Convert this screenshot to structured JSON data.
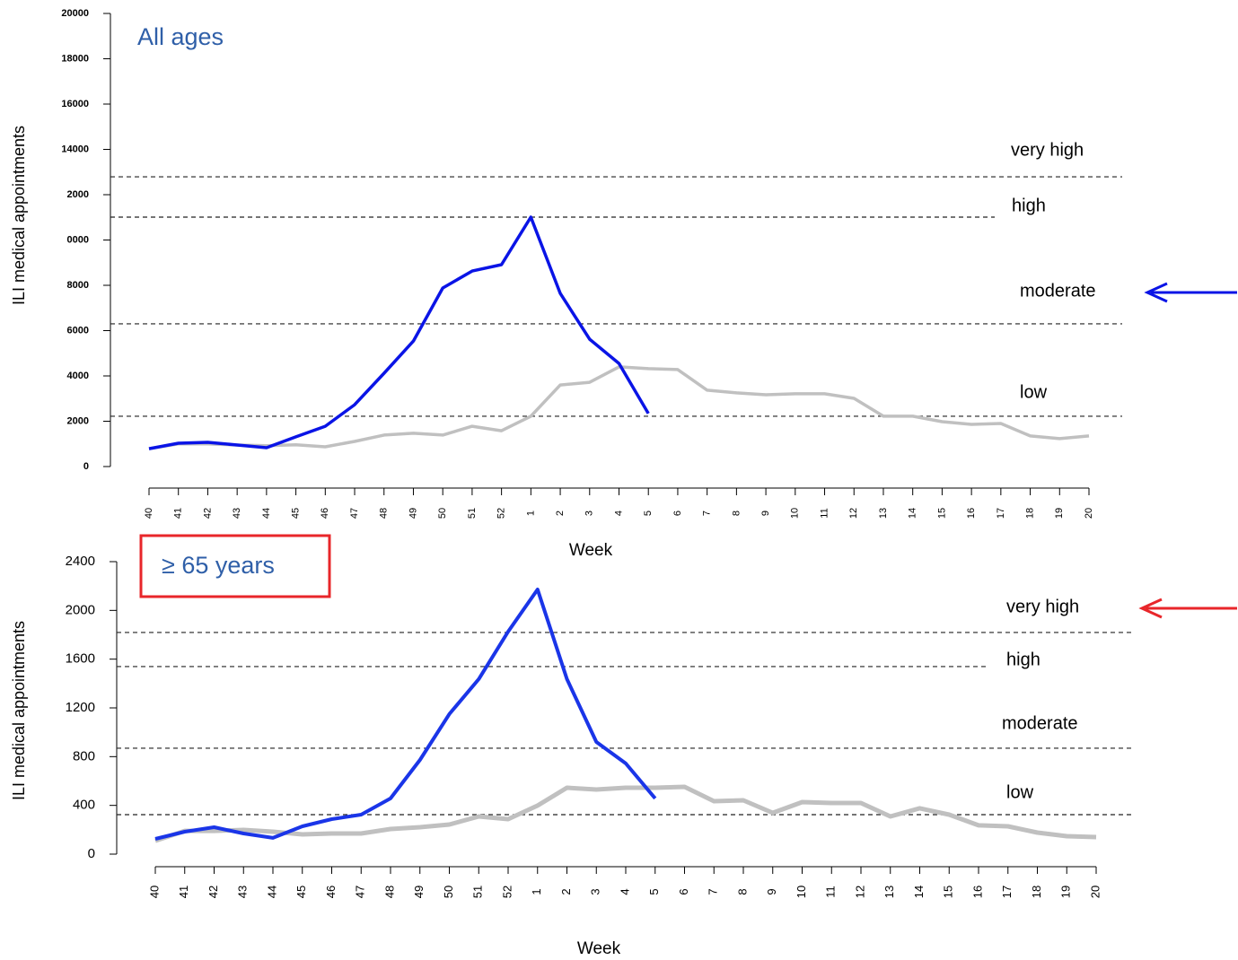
{
  "chart_data": [
    {
      "type": "line",
      "title": "All ages",
      "title_color": "#2f5fa8",
      "xlabel": "Week",
      "ylabel": "ILI medical appointments",
      "categories": [
        "40",
        "41",
        "42",
        "43",
        "44",
        "45",
        "46",
        "47",
        "48",
        "49",
        "50",
        "51",
        "52",
        "1",
        "2",
        "3",
        "4",
        "5",
        "6",
        "7",
        "8",
        "9",
        "10",
        "11",
        "12",
        "13",
        "14",
        "15",
        "16",
        "17",
        "18",
        "19",
        "20"
      ],
      "series": [
        {
          "color": "#c0c0c0",
          "values": [
            790,
            1000,
            1000,
            950,
            920,
            960,
            870,
            1110,
            1390,
            1470,
            1390,
            1780,
            1580,
            2220,
            3600,
            3720,
            4400,
            4320,
            4280,
            3370,
            3250,
            3170,
            3210,
            3210,
            3010,
            2220,
            2220,
            1980,
            1860,
            1900,
            1350,
            1230,
            1350
          ]
        },
        {
          "color": "#0a14e6",
          "values": [
            790,
            1030,
            1070,
            950,
            830,
            1310,
            1780,
            2730,
            4120,
            5540,
            7880,
            8630,
            8910,
            11010,
            7640,
            5620,
            4550,
            2340,
            null,
            null,
            null,
            null,
            null,
            null,
            null,
            null,
            null,
            null,
            null,
            null,
            null,
            null,
            null
          ]
        }
      ],
      "thresholds": [
        {
          "label": "very high",
          "value": 12790
        },
        {
          "label": "high",
          "value": 11010
        },
        {
          "label": "moderate",
          "value": 6300,
          "arrow_color": "#0a14e6"
        },
        {
          "label": "low",
          "value": 2220
        }
      ],
      "ylim": [
        0,
        20000
      ],
      "yticks": [
        0,
        2000,
        4000,
        6000,
        8000,
        {
          "value": 10000,
          "label": "0000"
        },
        {
          "value": 12000,
          "label": "2000"
        },
        14000,
        16000,
        18000,
        20000
      ]
    },
    {
      "type": "line",
      "title": "≥ 65 years",
      "title_color": "#2f5fa8",
      "title_box_color": "#e8262a",
      "xlabel": "Week",
      "ylabel": "ILI medical appointments",
      "categories": [
        "40",
        "41",
        "42",
        "43",
        "44",
        "45",
        "46",
        "47",
        "48",
        "49",
        "50",
        "51",
        "52",
        "1",
        "2",
        "3",
        "4",
        "5",
        "6",
        "7",
        "8",
        "9",
        "10",
        "11",
        "12",
        "13",
        "14",
        "15",
        "16",
        "17",
        "18",
        "19",
        "20"
      ],
      "series": [
        {
          "color": "#c0c0c0",
          "values": [
            110,
            191,
            191,
            199,
            184,
            162,
            169,
            169,
            206,
            221,
            243,
            309,
            287,
            398,
            545,
            530,
            545,
            545,
            552,
            434,
            442,
            339,
            427,
            420,
            420,
            309,
            376,
            324,
            236,
            228,
            177,
            147,
            140
          ]
        },
        {
          "color": "#1a35e8",
          "values": [
            125,
            184,
            221,
            169,
            133,
            228,
            287,
            324,
            457,
            773,
            1149,
            1436,
            1826,
            2172,
            1436,
            920,
            744,
            457,
            null,
            null,
            null,
            null,
            null,
            null,
            null,
            null,
            null,
            null,
            null,
            null,
            null,
            null,
            null
          ]
        }
      ],
      "thresholds": [
        {
          "label": "very high",
          "value": 1819,
          "arrow_color": "#e8262a"
        },
        {
          "label": "high",
          "value": 1539
        },
        {
          "label": "moderate",
          "value": 869
        },
        {
          "label": "low",
          "value": 324
        }
      ],
      "ylim": [
        0,
        2400
      ],
      "yticks": [
        0,
        400,
        800,
        1200,
        1600,
        2000,
        2400
      ]
    }
  ]
}
